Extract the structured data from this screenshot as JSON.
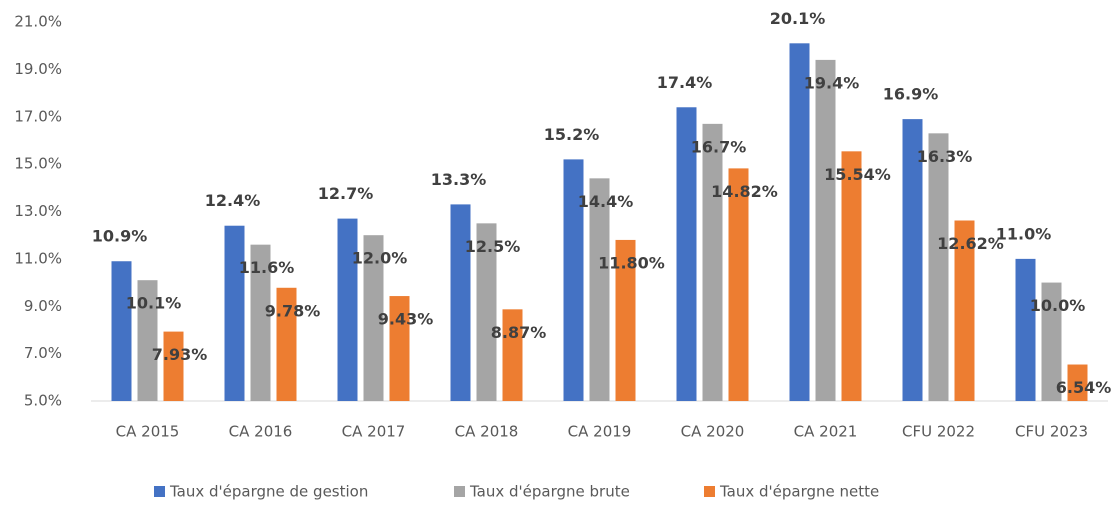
{
  "chart_data": {
    "type": "bar",
    "categories": [
      "CA 2015",
      "CA 2016",
      "CA 2017",
      "CA 2018",
      "CA 2019",
      "CA 2020",
      "CA 2021",
      "CFU 2022",
      "CFU 2023"
    ],
    "series": [
      {
        "name": "Taux d'épargne de gestion",
        "color": "#4472c4",
        "values": [
          10.9,
          12.4,
          12.7,
          13.3,
          15.2,
          17.4,
          20.1,
          16.9,
          11.0
        ],
        "value_labels": [
          "10.9%",
          "12.4%",
          "12.7%",
          "13.3%",
          "15.2%",
          "17.4%",
          "20.1%",
          "16.9%",
          "11.0%"
        ]
      },
      {
        "name": "Taux d'épargne brute",
        "color": "#a5a5a5",
        "values": [
          10.1,
          11.6,
          12.0,
          12.5,
          14.4,
          16.7,
          19.4,
          16.3,
          10.0
        ],
        "value_labels": [
          "10.1%",
          "11.6%",
          "12.0%",
          "12.5%",
          "14.4%",
          "16.7%",
          "19.4%",
          "16.3%",
          "10.0%"
        ]
      },
      {
        "name": "Taux d'épargne nette",
        "color": "#ed7d31",
        "values": [
          7.93,
          9.78,
          9.43,
          8.87,
          11.8,
          14.82,
          15.54,
          12.62,
          6.54
        ],
        "value_labels": [
          "7.93%",
          "9.78%",
          "9.43%",
          "8.87%",
          "11.80%",
          "14.82%",
          "15.54%",
          "12.62%",
          "6.54%"
        ]
      }
    ],
    "ylim": [
      5,
      21
    ],
    "yticks": [
      {
        "value": 5,
        "label": "5.0%"
      },
      {
        "value": 7,
        "label": "7.0%"
      },
      {
        "value": 9,
        "label": "9.0%"
      },
      {
        "value": 11,
        "label": "11.0%"
      },
      {
        "value": 13,
        "label": "13.0%"
      },
      {
        "value": 15,
        "label": "15.0%"
      },
      {
        "value": 17,
        "label": "17.0%"
      },
      {
        "value": 19,
        "label": "19.0%"
      },
      {
        "value": 21,
        "label": "21.0%"
      }
    ],
    "grid": false,
    "legend": "bottom"
  }
}
